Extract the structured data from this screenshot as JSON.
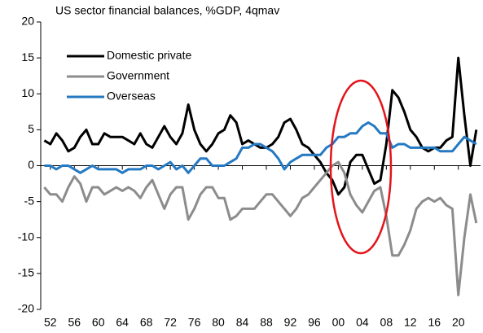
{
  "chart_data": {
    "type": "line",
    "title": "US sector financial balances, %GDP, 4qmav",
    "x": [
      1951,
      1952,
      1953,
      1954,
      1955,
      1956,
      1957,
      1958,
      1959,
      1960,
      1961,
      1962,
      1963,
      1964,
      1965,
      1966,
      1967,
      1968,
      1969,
      1970,
      1971,
      1972,
      1973,
      1974,
      1975,
      1976,
      1977,
      1978,
      1979,
      1980,
      1981,
      1982,
      1983,
      1984,
      1985,
      1986,
      1987,
      1988,
      1989,
      1990,
      1991,
      1992,
      1993,
      1994,
      1995,
      1996,
      1997,
      1998,
      1999,
      2000,
      2001,
      2002,
      2003,
      2004,
      2005,
      2006,
      2007,
      2008,
      2009,
      2010,
      2011,
      2012,
      2013,
      2014,
      2015,
      2016,
      2017,
      2018,
      2019,
      2020,
      2021,
      2022,
      2023
    ],
    "series": [
      {
        "name": "Domestic private",
        "color": "#000000",
        "values": [
          3.5,
          3,
          4.5,
          3.5,
          2,
          2.5,
          4,
          5,
          3,
          3,
          4.5,
          4,
          4,
          4,
          3.5,
          3,
          4.5,
          3,
          2.5,
          4,
          5.5,
          4,
          3,
          4.5,
          8.5,
          5,
          3,
          2,
          3,
          4.5,
          5,
          7,
          6,
          3,
          3.5,
          3,
          2.5,
          2.5,
          3,
          4,
          6,
          6.5,
          5,
          3,
          2.5,
          1.5,
          0.5,
          -1,
          -2,
          -4,
          -3,
          0.5,
          1.5,
          1.5,
          -0.5,
          -2.5,
          -2,
          3,
          10.5,
          9.5,
          7.5,
          5,
          4,
          2.5,
          2,
          2.5,
          2.5,
          3.5,
          4,
          15,
          7,
          0,
          5
        ]
      },
      {
        "name": "Government",
        "color": "#8c8c8c",
        "values": [
          -3,
          -4,
          -4,
          -5,
          -3,
          -1.5,
          -2.5,
          -5,
          -3,
          -3,
          -4,
          -3.5,
          -3,
          -3.5,
          -3,
          -3.5,
          -4.5,
          -3,
          -2,
          -4,
          -6,
          -4,
          -3,
          -3,
          -7.5,
          -6,
          -4,
          -3,
          -3,
          -4.5,
          -4.5,
          -7.5,
          -7,
          -6,
          -6,
          -6,
          -5,
          -4,
          -4,
          -5,
          -6,
          -7,
          -6,
          -4.5,
          -4,
          -3,
          -2,
          -1,
          0,
          0.5,
          -1,
          -4,
          -5.5,
          -6.5,
          -5,
          -3.5,
          -3,
          -7,
          -12.5,
          -12.5,
          -11,
          -9,
          -6,
          -5,
          -4.5,
          -5,
          -4.5,
          -5.5,
          -6,
          -18,
          -10,
          -4,
          -8
        ]
      },
      {
        "name": "Overseas",
        "color": "#2479c2",
        "values": [
          0,
          0,
          -0.5,
          0,
          0,
          -0.5,
          -1,
          -0.5,
          0,
          -0.5,
          -0.5,
          -0.5,
          -0.5,
          -1,
          -0.5,
          -0.5,
          -0.5,
          0,
          0,
          -0.5,
          0,
          0.5,
          -0.5,
          0,
          -1,
          0,
          1,
          1,
          0,
          0,
          0,
          0.5,
          1,
          2.5,
          2.5,
          3,
          3,
          2.5,
          2,
          1,
          -0.5,
          0.5,
          1,
          1.5,
          1.5,
          1.5,
          1.5,
          2.5,
          3,
          4,
          4,
          4.5,
          4.5,
          5.5,
          6,
          5.5,
          4.5,
          4.5,
          2.5,
          3,
          3,
          2.5,
          2.5,
          2.5,
          2.5,
          2.5,
          2,
          2,
          2,
          3,
          4,
          3.5,
          3
        ]
      }
    ],
    "xlim": [
      1950.4,
      2023.7
    ],
    "xticks": [
      {
        "value": 1952,
        "label": "52"
      },
      {
        "value": 1956,
        "label": "56"
      },
      {
        "value": 1960,
        "label": "60"
      },
      {
        "value": 1964,
        "label": "64"
      },
      {
        "value": 1968,
        "label": "68"
      },
      {
        "value": 1972,
        "label": "72"
      },
      {
        "value": 1976,
        "label": "76"
      },
      {
        "value": 1980,
        "label": "80"
      },
      {
        "value": 1984,
        "label": "84"
      },
      {
        "value": 1988,
        "label": "88"
      },
      {
        "value": 1992,
        "label": "92"
      },
      {
        "value": 1996,
        "label": "96"
      },
      {
        "value": 2000,
        "label": "00"
      },
      {
        "value": 2004,
        "label": "04"
      },
      {
        "value": 2008,
        "label": "08"
      },
      {
        "value": 2012,
        "label": "12"
      },
      {
        "value": 2016,
        "label": "16"
      },
      {
        "value": 2020,
        "label": "20"
      }
    ],
    "ylim": [
      -20,
      20
    ],
    "yticks": [
      -20,
      -15,
      -10,
      -5,
      0,
      5,
      10,
      15,
      20
    ],
    "legend": "upper left",
    "grid": false
  }
}
